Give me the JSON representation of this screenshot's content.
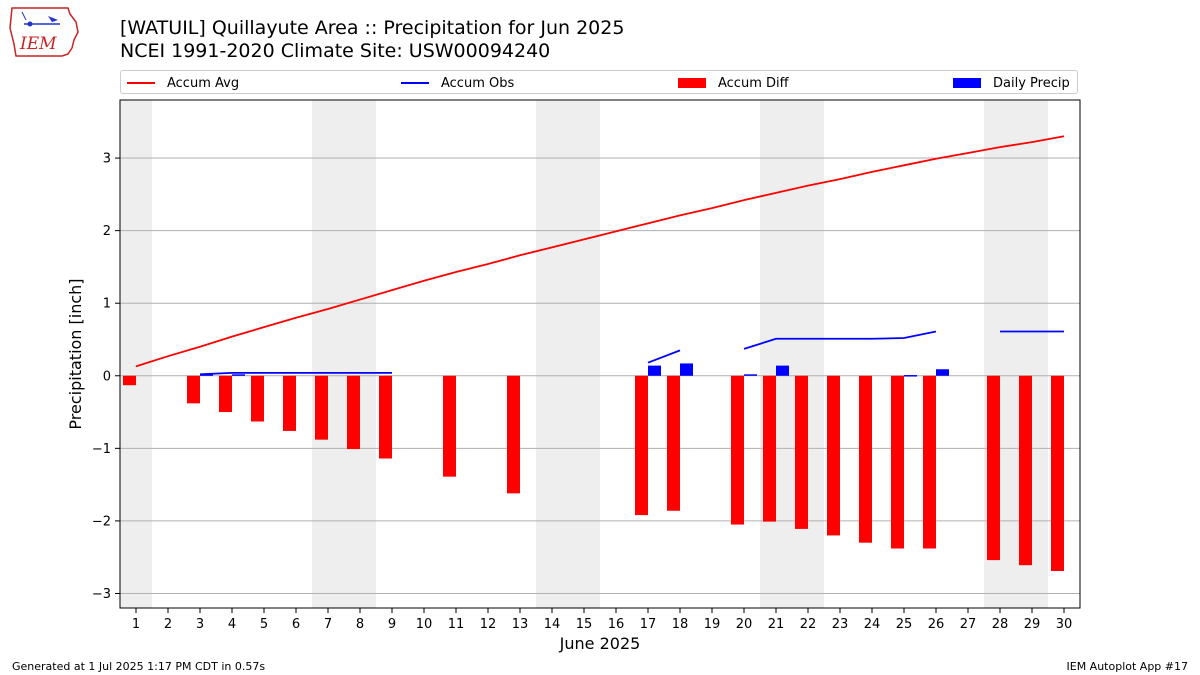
{
  "header": {
    "title_line1": "[WATUIL] Quillayute Area :: Precipitation for Jun 2025",
    "title_line2": "NCEI 1991-2020 Climate Site: USW00094240"
  },
  "logo": {
    "text": "IEM",
    "icon": "iem-iowa-logo"
  },
  "legend": {
    "accum_avg": "Accum Avg",
    "accum_obs": "Accum Obs",
    "accum_diff": "Accum Diff",
    "daily_precip": "Daily Precip"
  },
  "footer": {
    "left": "Generated at 1 Jul 2025 1:17 PM CDT in 0.57s",
    "right": "IEM Autoplot App #17"
  },
  "colors": {
    "accum_avg": "#ff0000",
    "accum_obs": "#0000ff",
    "accum_diff": "#ff0000",
    "daily_precip": "#0000ff",
    "weekend_shade": "#eeeeee",
    "grid": "#b0b0b0"
  },
  "chart_data": {
    "type": "bar",
    "xlabel": "June 2025",
    "ylabel": "Precipitation [inch]",
    "xlim": [
      0.5,
      30.5
    ],
    "ylim": [
      -3.2,
      3.8
    ],
    "yticks": [
      -3,
      -2,
      -1,
      0,
      1,
      2,
      3
    ],
    "ytick_labels": [
      "−3",
      "−2",
      "−1",
      "0",
      "1",
      "2",
      "3"
    ],
    "days": [
      1,
      2,
      3,
      4,
      5,
      6,
      7,
      8,
      9,
      10,
      11,
      12,
      13,
      14,
      15,
      16,
      17,
      18,
      19,
      20,
      21,
      22,
      23,
      24,
      25,
      26,
      27,
      28,
      29,
      30
    ],
    "shaded_days": [
      [
        0.5,
        1.5
      ],
      [
        6.5,
        8.5
      ],
      [
        13.5,
        15.5
      ],
      [
        20.5,
        22.5
      ],
      [
        27.5,
        29.5
      ]
    ],
    "grid": true,
    "legend_position": "top",
    "accum_avg": [
      0.13,
      0.27,
      0.4,
      0.54,
      0.67,
      0.8,
      0.92,
      1.05,
      1.18,
      1.31,
      1.43,
      1.54,
      1.66,
      1.77,
      1.88,
      1.99,
      2.1,
      2.21,
      2.31,
      2.42,
      2.52,
      2.62,
      2.71,
      2.81,
      2.9,
      2.99,
      3.07,
      3.15,
      3.22,
      3.3
    ],
    "accum_obs": [
      null,
      null,
      0.02,
      0.04,
      0.04,
      0.04,
      0.04,
      0.04,
      0.04,
      null,
      null,
      null,
      null,
      null,
      null,
      null,
      0.18,
      0.35,
      null,
      0.37,
      0.51,
      0.51,
      0.51,
      0.51,
      0.52,
      0.61,
      null,
      0.61,
      0.61,
      0.61
    ],
    "accum_diff": [
      -0.13,
      null,
      -0.38,
      -0.5,
      -0.63,
      -0.76,
      -0.88,
      -1.01,
      -1.14,
      null,
      -1.39,
      null,
      -1.62,
      null,
      null,
      null,
      -1.92,
      -1.86,
      null,
      -2.05,
      -2.01,
      -2.11,
      -2.2,
      -2.3,
      -2.38,
      -2.38,
      null,
      -2.54,
      -2.61,
      -2.69
    ],
    "daily_precip": [
      0,
      0,
      0.02,
      0.02,
      0,
      0,
      0,
      0,
      0,
      0,
      0,
      0,
      0,
      0,
      0,
      0,
      0.14,
      0.17,
      0,
      0.02,
      0.14,
      0,
      0,
      0,
      0.01,
      0.09,
      0,
      0,
      0,
      0
    ]
  }
}
